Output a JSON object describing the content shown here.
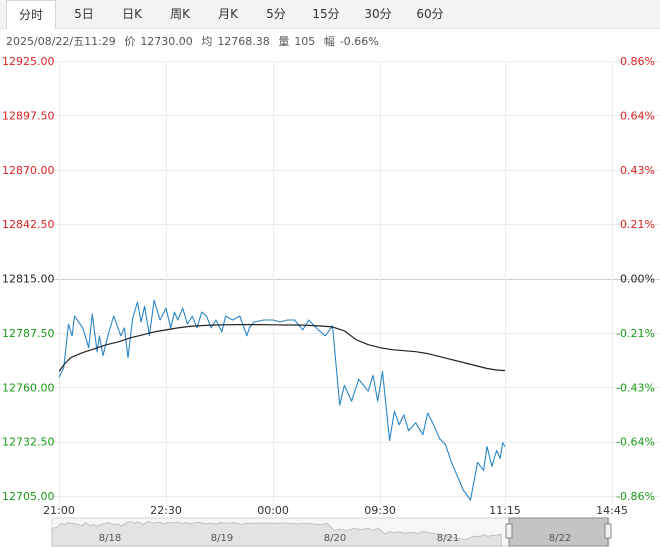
{
  "tabs": [
    {
      "label": "分时",
      "active": true
    },
    {
      "label": "5日",
      "active": false
    },
    {
      "label": "日K",
      "active": false
    },
    {
      "label": "周K",
      "active": false
    },
    {
      "label": "月K",
      "active": false
    },
    {
      "label": "5分",
      "active": false
    },
    {
      "label": "15分",
      "active": false
    },
    {
      "label": "30分",
      "active": false
    },
    {
      "label": "60分",
      "active": false
    }
  ],
  "info": {
    "datetime": "2025/08/22/五11:29",
    "price_label": "价",
    "price": "12730.00",
    "avg_label": "均",
    "avg": "12768.38",
    "vol_label": "量",
    "vol": "105",
    "chg_label": "幅",
    "chg": "-0.66%"
  },
  "colors": {
    "up": "#e02222",
    "down": "#1a9c1a",
    "flat": "#222222",
    "price_line": "#2a86c6",
    "avg_line": "#222222"
  },
  "navigator_labels": [
    "8/18",
    "8/19",
    "8/20",
    "8/21",
    "8/22"
  ],
  "chart_data": {
    "type": "line",
    "title": "",
    "xlabel": "",
    "ylabel": "",
    "prev_close": 12815.0,
    "ylim": [
      12705.0,
      12925.0
    ],
    "y_ticks": [
      {
        "price": "12925.00",
        "pct": "0.86%"
      },
      {
        "price": "12897.50",
        "pct": "0.64%"
      },
      {
        "price": "12870.00",
        "pct": "0.43%"
      },
      {
        "price": "12842.50",
        "pct": "0.21%"
      },
      {
        "price": "12815.00",
        "pct": "0.00%"
      },
      {
        "price": "12787.50",
        "pct": "-0.21%"
      },
      {
        "price": "12760.00",
        "pct": "-0.43%"
      },
      {
        "price": "12732.50",
        "pct": "-0.64%"
      },
      {
        "price": "12705.00",
        "pct": "-0.86%"
      }
    ],
    "x_tick_labels": [
      "21:00",
      "22:30",
      "00:00",
      "09:30",
      "11:15",
      "14:45"
    ],
    "x_tick_index": [
      0,
      90,
      180,
      270,
      375,
      465
    ],
    "session_length": 465,
    "series": [
      {
        "name": "",
        "role": "price",
        "x": [
          0,
          4,
          8,
          11,
          13,
          20,
          25,
          28,
          32,
          34,
          37,
          42,
          46,
          52,
          55,
          58,
          62,
          66,
          69,
          72,
          76,
          80,
          85,
          90,
          94,
          97,
          100,
          104,
          108,
          112,
          116,
          120,
          124,
          128,
          132,
          137,
          140,
          146,
          152,
          158,
          160,
          164,
          172,
          180,
          186,
          192,
          198,
          205,
          210,
          218,
          224,
          230,
          236,
          240,
          246,
          252,
          260,
          264,
          268,
          272,
          278,
          282,
          286,
          290,
          294,
          300,
          306,
          310,
          315,
          320,
          325,
          330,
          335,
          340,
          346,
          352,
          357,
          360,
          364,
          368,
          371,
          373,
          375
        ],
        "values": [
          12765,
          12770,
          12792,
          12786,
          12796,
          12790,
          12780,
          12797,
          12778,
          12786,
          12776,
          12788,
          12796,
          12786,
          12790,
          12775,
          12795,
          12803,
          12793,
          12801,
          12786,
          12804,
          12794,
          12800,
          12790,
          12798,
          12794,
          12800,
          12792,
          12796,
          12790,
          12798,
          12796,
          12790,
          12794,
          12788,
          12796,
          12794,
          12796,
          12786,
          12790,
          12793,
          12794,
          12794,
          12793,
          12794,
          12794,
          12789,
          12794,
          12789,
          12786,
          12791,
          12751,
          12761,
          12753,
          12764,
          12758,
          12766,
          12753,
          12768,
          12733,
          12748,
          12741,
          12746,
          12738,
          12742,
          12736,
          12747,
          12741,
          12734,
          12731,
          12722,
          12715,
          12708,
          12703,
          12722,
          12718,
          12730,
          12720,
          12728,
          12724,
          12732,
          12730
        ]
      },
      {
        "name": "",
        "role": "average",
        "x": [
          0,
          5,
          10,
          20,
          30,
          40,
          50,
          60,
          70,
          80,
          90,
          100,
          110,
          120,
          130,
          140,
          150,
          160,
          170,
          180,
          190,
          200,
          210,
          220,
          230,
          240,
          250,
          260,
          270,
          280,
          290,
          300,
          310,
          320,
          330,
          340,
          350,
          360,
          368,
          375
        ],
        "values": [
          12768,
          12772,
          12775,
          12777.5,
          12779.5,
          12781.5,
          12783,
          12785,
          12786.5,
          12788,
          12789,
          12790,
          12790.8,
          12791.2,
          12791.5,
          12791.6,
          12791.7,
          12791.7,
          12791.7,
          12791.6,
          12791.5,
          12791.5,
          12791.3,
          12791,
          12790.5,
          12788.5,
          12784,
          12781.5,
          12780,
          12779,
          12778.5,
          12778,
          12777,
          12775.5,
          12774,
          12772.5,
          12771,
          12769.5,
          12768.7,
          12768.4
        ]
      }
    ],
    "grid": true,
    "legend": "none"
  }
}
